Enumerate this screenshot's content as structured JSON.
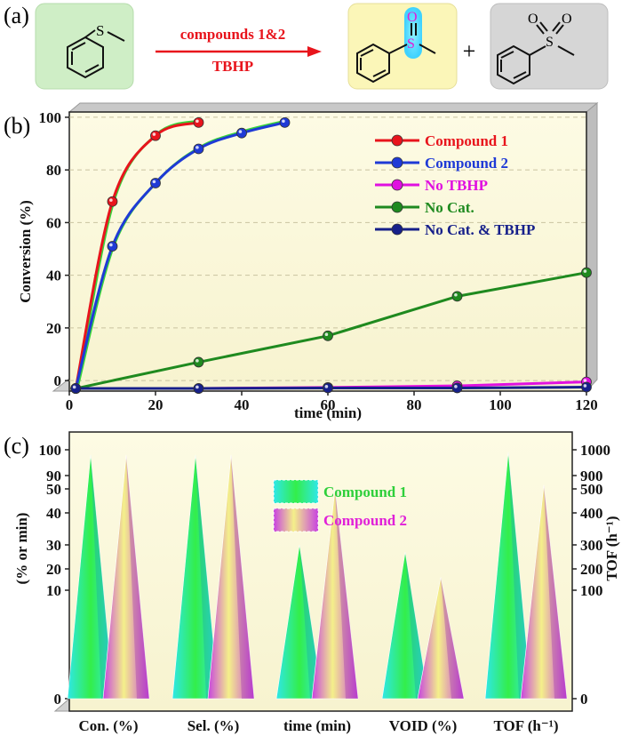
{
  "panels": {
    "a_label": "(a)",
    "b_label": "(b)",
    "c_label": "(c)"
  },
  "reaction": {
    "reagent_line1": "compounds 1&2",
    "reagent_line2": "TBHP",
    "plus": "+",
    "atom_S": "S",
    "atom_O": "O",
    "colors": {
      "arrow": "#e8141c",
      "box1": "#c8f0c0",
      "box2": "#fbf6b4",
      "box3": "#d4d4d4",
      "highlight": "#5ce0ff"
    }
  },
  "chart_data": [
    {
      "id": "conversion_vs_time",
      "type": "line",
      "xlabel": "time (min)",
      "ylabel": "Conversion (%)",
      "xlim": [
        0,
        120
      ],
      "ylim": [
        -4,
        102
      ],
      "xticks": [
        0,
        20,
        40,
        60,
        80,
        100,
        120
      ],
      "yticks": [
        0,
        20,
        40,
        60,
        80,
        100
      ],
      "series": [
        {
          "name": "Compound 1",
          "color": "#e8141c",
          "x": [
            1.5,
            10,
            20,
            30
          ],
          "y": [
            -3,
            68,
            93,
            98
          ]
        },
        {
          "name": "Compound 2",
          "color": "#1f3ad6",
          "x": [
            1.5,
            10,
            20,
            30,
            40,
            50
          ],
          "y": [
            -3,
            51,
            75,
            88,
            94,
            98
          ]
        },
        {
          "name": "No TBHP",
          "color": "#e010e0",
          "x": [
            1.5,
            30,
            60,
            90,
            120
          ],
          "y": [
            -3,
            -3,
            -2.6,
            -2,
            -0.5
          ]
        },
        {
          "name": "No Cat.",
          "color": "#1f8a1f",
          "x": [
            1.5,
            30,
            60,
            90,
            120
          ],
          "y": [
            -3,
            7,
            17,
            32,
            41
          ]
        },
        {
          "name": "No Cat. & TBHP",
          "color": "#16208a",
          "x": [
            1.5,
            30,
            60,
            90,
            120
          ],
          "y": [
            -3,
            -3,
            -2.8,
            -2.8,
            -2.5
          ]
        }
      ]
    },
    {
      "id": "catalytic_comparison",
      "type": "bar",
      "ylabel_left": "(% or min)",
      "ylabel_right": "TOF (h⁻¹)",
      "left_ticks": [
        0,
        10,
        20,
        30,
        40,
        50,
        90,
        100
      ],
      "right_ticks": [
        0,
        100,
        200,
        300,
        400,
        500,
        900,
        1000
      ],
      "categories": [
        "Con. (%)",
        "Sel. (%)",
        "time (min)",
        "VOID (%)",
        "TOF (h⁻¹)"
      ],
      "series": [
        {
          "name": "Compound 1",
          "values": [
            98,
            98,
            30,
            27,
            990
          ]
        },
        {
          "name": "Compound 2",
          "values": [
            98,
            98,
            50,
            16,
            620
          ]
        }
      ]
    }
  ]
}
